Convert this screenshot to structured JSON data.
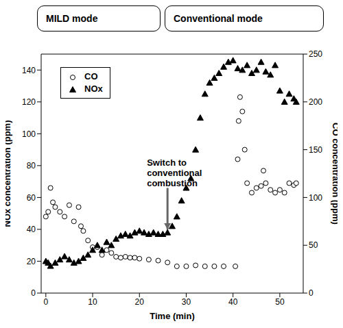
{
  "chart_data": {
    "type": "scatter",
    "x_label": "Time (min)",
    "y_label": "NOx concentration (ppm)",
    "y2_label": "CO concentration (ppm)",
    "modes": [
      "MILD mode",
      "Conventional mode"
    ],
    "annotations": [
      {
        "text": "Switch to conventional combustion",
        "x": 26,
        "y": 40,
        "y_start": 66
      }
    ],
    "legend": "upper left",
    "grid": false,
    "xlim": [
      -1,
      55
    ],
    "xticks": [
      0,
      10,
      20,
      30,
      40,
      50
    ],
    "ylim": [
      0,
      150
    ],
    "yticks": [
      0,
      20,
      40,
      60,
      80,
      100,
      120,
      140
    ],
    "y2lim": [
      0,
      250
    ],
    "y2ticks": [
      0,
      50,
      100,
      150,
      200,
      250
    ],
    "series": [
      {
        "name": "CO",
        "color": "#000000",
        "marker": "hollow_circle",
        "axis": "y2",
        "x": [
          0,
          0.5,
          1,
          1.5,
          2,
          3,
          4,
          5,
          6,
          7,
          7.5,
          8,
          9,
          10,
          11,
          12,
          13,
          14,
          15,
          16,
          17,
          18,
          19,
          20,
          22,
          24,
          26,
          28,
          30,
          32,
          34,
          36,
          38,
          40.5,
          41,
          41.2,
          41.5,
          42,
          42.5,
          43,
          44,
          45,
          46,
          46.5,
          47,
          48,
          49,
          50,
          51,
          52,
          53,
          53.5
        ],
        "values": [
          80,
          85,
          110,
          95,
          90,
          85,
          80,
          92,
          75,
          90,
          70,
          65,
          55,
          48,
          48,
          40,
          45,
          42,
          38,
          37,
          38,
          37,
          37,
          36,
          35,
          34,
          32,
          28,
          28,
          29,
          28,
          28,
          28,
          28,
          140,
          180,
          205,
          190,
          150,
          115,
          105,
          110,
          112,
          128,
          115,
          108,
          105,
          108,
          105,
          115,
          113,
          115
        ]
      },
      {
        "name": "NOx",
        "color": "#000000",
        "marker": "triangle",
        "x": [
          0,
          0.5,
          1,
          2,
          3,
          4,
          5,
          6,
          7,
          8,
          9,
          10,
          11,
          12,
          13,
          14,
          15,
          16,
          17,
          18,
          19,
          20,
          21,
          22,
          23,
          24,
          25,
          26,
          27,
          28,
          29,
          30,
          31,
          32,
          33,
          34,
          35,
          36,
          37,
          38,
          39,
          40,
          41,
          42,
          43,
          44,
          45,
          46,
          47,
          48,
          49,
          50,
          51,
          52,
          53,
          53.5
        ],
        "values": [
          20,
          19,
          17,
          19,
          21,
          23,
          21,
          19,
          20,
          22,
          24,
          27,
          30,
          27,
          32,
          30,
          34,
          36,
          37,
          36,
          38,
          39,
          38,
          37,
          38,
          37,
          37,
          38,
          42,
          48,
          58,
          66,
          72,
          90,
          110,
          125,
          132,
          135,
          138,
          142,
          145,
          146,
          141,
          140,
          143,
          138,
          140,
          145,
          139,
          137,
          143,
          127,
          120,
          125,
          122,
          120
        ]
      }
    ]
  }
}
